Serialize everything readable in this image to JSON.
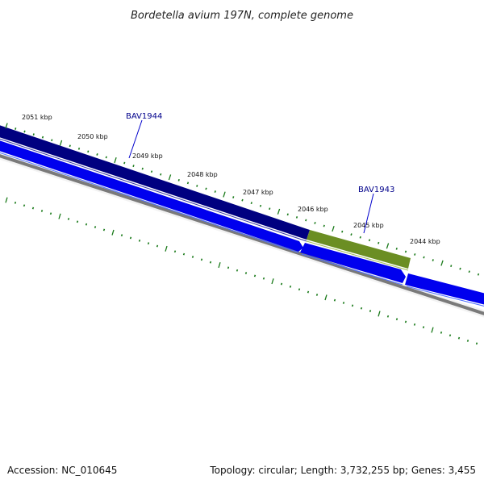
{
  "title": "Bordetella avium 197N, complete genome",
  "tick_labels": [
    "2051 kbp",
    "2050 kbp",
    "2049 kbp",
    "2048 kbp",
    "2047 kbp",
    "2046 kbp",
    "2045 kbp",
    "2044 kbp"
  ],
  "genes": [
    {
      "name": "BAV1944",
      "color": "#000080"
    },
    {
      "name": "BAV1943",
      "color": "#6b8e23"
    }
  ],
  "footer": {
    "accession": "Accession: NC_010645",
    "stats": "Topology: circular; Length: 3,732,255 bp; Genes: 3,455"
  },
  "colors": {
    "forward_strand_gene": "#000080",
    "highlight_gene": "#6b8e23",
    "reverse_strand_gene": "#0000ee",
    "backbone": "#777777",
    "ticks": "#1a7a1a",
    "gene_label": "#00008b"
  }
}
